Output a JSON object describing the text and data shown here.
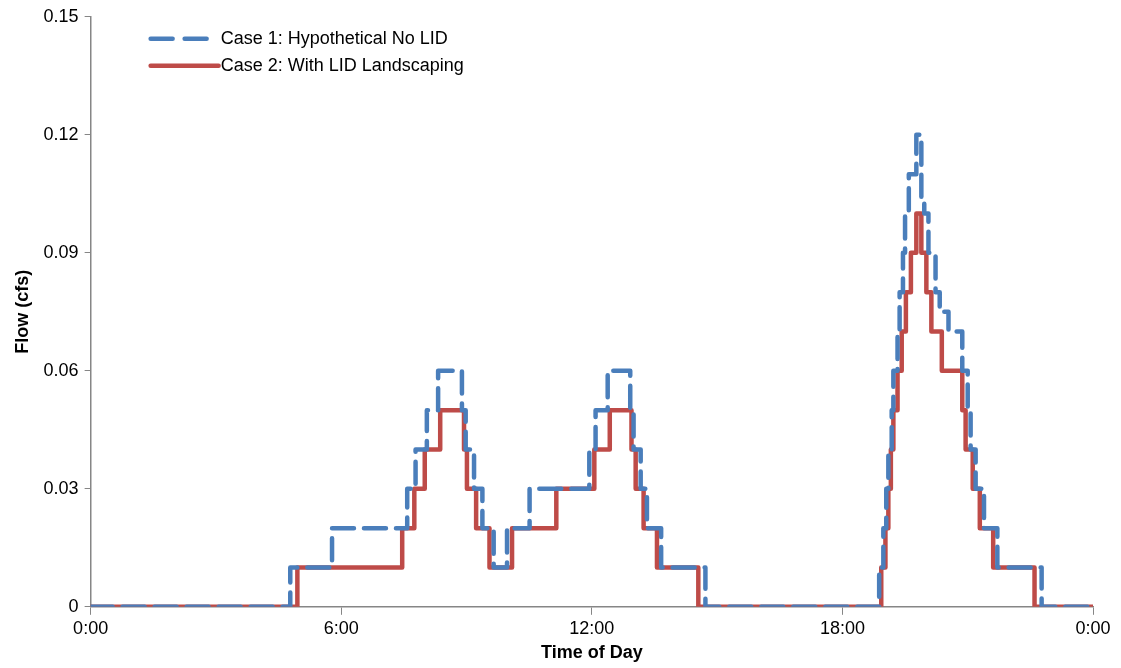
{
  "chart_data": {
    "type": "step",
    "xlabel": "Time of Day",
    "ylabel": "Flow (cfs)",
    "xlim": [
      0,
      24
    ],
    "xticks": [
      {
        "value": 0,
        "label": "0:00"
      },
      {
        "value": 6,
        "label": "6:00"
      },
      {
        "value": 12,
        "label": "12:00"
      },
      {
        "value": 18,
        "label": "18:00"
      },
      {
        "value": 24,
        "label": "0:00"
      }
    ],
    "ylim": [
      0,
      0.15
    ],
    "yticks": [
      0,
      0.03,
      0.06,
      0.09,
      0.12,
      0.15
    ],
    "grid": false,
    "legend": "top left",
    "marker": "none",
    "series": [
      {
        "name": "Case 1: Hypothetical No LID",
        "color": "#4a7ebb",
        "line_style": "dashed",
        "x": [
          0,
          4.78,
          5.78,
          7.58,
          7.78,
          8.05,
          8.32,
          8.89,
          8.98,
          9.18,
          9.38,
          9.65,
          9.97,
          10.51,
          11.94,
          12.09,
          12.38,
          12.92,
          13.0,
          13.17,
          13.32,
          13.66,
          14.72,
          18.88,
          18.98,
          19.05,
          19.1,
          19.18,
          19.22,
          19.32,
          19.37,
          19.45,
          19.5,
          19.59,
          19.77,
          19.89,
          19.96,
          20.06,
          20.23,
          20.33,
          20.54,
          20.87,
          21.0,
          21.07,
          21.19,
          21.39,
          21.71,
          22.77,
          24
        ],
        "values": [
          0,
          0.01,
          0.02,
          0.03,
          0.04,
          0.05,
          0.06,
          0.05,
          0.04,
          0.03,
          0.02,
          0.01,
          0.02,
          0.03,
          0.04,
          0.05,
          0.06,
          0.05,
          0.04,
          0.03,
          0.02,
          0.01,
          0,
          0.01,
          0.02,
          0.03,
          0.04,
          0.05,
          0.06,
          0.07,
          0.08,
          0.09,
          0.1,
          0.11,
          0.12,
          0.104,
          0.1,
          0.09,
          0.08,
          0.075,
          0.07,
          0.06,
          0.05,
          0.04,
          0.03,
          0.02,
          0.01,
          0,
          0
        ]
      },
      {
        "name": "Case 2: With LID Landscaping",
        "color": "#be4b48",
        "line_style": "solid",
        "x": [
          0,
          4.95,
          7.46,
          7.75,
          8.0,
          8.37,
          8.94,
          9.01,
          9.23,
          9.55,
          10.09,
          11.15,
          12.06,
          12.43,
          12.95,
          13.05,
          13.24,
          13.56,
          14.55,
          18.93,
          19.03,
          19.1,
          19.16,
          19.22,
          19.32,
          19.42,
          19.52,
          19.64,
          19.77,
          19.89,
          20.01,
          20.13,
          20.38,
          20.87,
          20.95,
          21.12,
          21.29,
          21.61,
          22.6,
          24
        ],
        "values": [
          0,
          0.01,
          0.02,
          0.03,
          0.04,
          0.05,
          0.04,
          0.03,
          0.02,
          0.01,
          0.02,
          0.03,
          0.04,
          0.05,
          0.04,
          0.03,
          0.02,
          0.01,
          0,
          0.01,
          0.02,
          0.03,
          0.04,
          0.05,
          0.06,
          0.07,
          0.08,
          0.09,
          0.1,
          0.09,
          0.08,
          0.07,
          0.06,
          0.05,
          0.04,
          0.03,
          0.02,
          0.01,
          0,
          0
        ]
      }
    ]
  }
}
